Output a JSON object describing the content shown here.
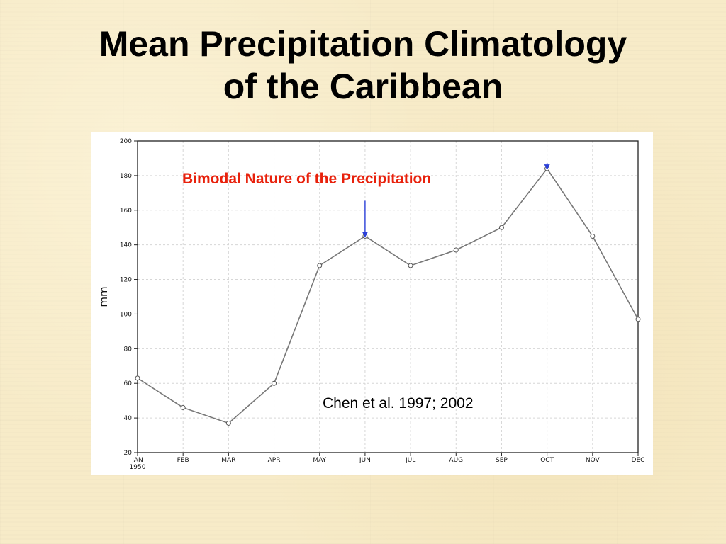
{
  "slide": {
    "title_line1": "Mean Precipitation Climatology",
    "title_line2": "of the Caribbean"
  },
  "chart_data": {
    "type": "line",
    "categories": [
      "JAN",
      "FEB",
      "MAR",
      "APR",
      "MAY",
      "JUN",
      "JUL",
      "AUG",
      "SEP",
      "OCT",
      "NOV",
      "DEC"
    ],
    "x_tick_sublabel": "1950",
    "ylabel": "mm",
    "ylim": [
      20,
      200
    ],
    "yticks": [
      20,
      40,
      60,
      80,
      100,
      120,
      140,
      160,
      180,
      200
    ],
    "grid": true,
    "series": [
      {
        "values": [
          63,
          46,
          37,
          60,
          128,
          145,
          128,
          137,
          150,
          184,
          145,
          97
        ]
      }
    ],
    "annotations": {
      "bimodal_label": "Bimodal Nature of the Precipitation",
      "citation": "Chen et al. 1997; 2002",
      "arrow_peaks": [
        "JUN",
        "OCT"
      ]
    },
    "colors": {
      "line": "#777777",
      "bimodal_label": "#e8210c",
      "arrow": "#2a3fd8",
      "grid": "#d6d6d6"
    }
  }
}
